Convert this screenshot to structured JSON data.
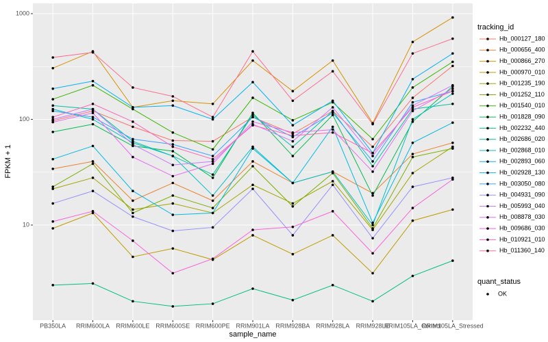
{
  "chart_data": {
    "type": "line",
    "x_label": "sample_name",
    "y_label": "FPKM + 1",
    "legend_title": "tracking_id",
    "shape_legend_title": "quant_status",
    "shape_legend_items": [
      "OK"
    ],
    "log_y": true,
    "grid": true,
    "categories": [
      "PB350LA",
      "RRIM600LA",
      "RRIM600LE",
      "RRIM600SE",
      "RRIM600PE",
      "RRIM901LA",
      "RRIM928BA",
      "RRIM928LA",
      "RRIM928LE",
      "RRIM105LA_Control",
      "RRIM105LA_Stressed"
    ],
    "ylim": [
      1.26,
      1250
    ],
    "yticks": [
      10,
      100,
      1000
    ],
    "series": [
      {
        "name": "Hb_000127_180",
        "color": "#F8766D",
        "values": [
          97,
          120,
          85,
          63,
          62,
          105,
          73,
          120,
          55,
          160,
          320
        ]
      },
      {
        "name": "Hb_000656_400",
        "color": "#EA8331",
        "values": [
          34,
          40,
          17,
          25,
          17,
          40,
          25,
          32,
          20,
          47,
          60
        ]
      },
      {
        "name": "Hb_000866_270",
        "color": "#D89000",
        "values": [
          305,
          440,
          130,
          150,
          140,
          360,
          185,
          360,
          92,
          540,
          920
        ]
      },
      {
        "name": "Hb_000970_010",
        "color": "#C09B00",
        "values": [
          9.3,
          13,
          5,
          6,
          4.7,
          8,
          5.3,
          8,
          3.5,
          11,
          14
        ]
      },
      {
        "name": "Hb_001235_190",
        "color": "#A3A500",
        "values": [
          22,
          28,
          14,
          16,
          13,
          24,
          16,
          26,
          9,
          31,
          55
        ]
      },
      {
        "name": "Hb_001252_110",
        "color": "#7CAE00",
        "values": [
          23,
          38,
          13,
          19,
          14.5,
          36,
          15,
          31,
          9.3,
          44,
          53
        ]
      },
      {
        "name": "Hb_001540_010",
        "color": "#39B600",
        "values": [
          155,
          210,
          125,
          75,
          52,
          160,
          98,
          145,
          65,
          200,
          350
        ]
      },
      {
        "name": "Hb_001828_090",
        "color": "#00BB4E",
        "values": [
          76,
          90,
          56,
          50,
          28,
          115,
          45,
          110,
          19,
          95,
          205
        ]
      },
      {
        "name": "Hb_002232_440",
        "color": "#00BF7D",
        "values": [
          2.7,
          2.8,
          1.9,
          1.7,
          1.8,
          2.5,
          1.95,
          2.7,
          1.9,
          3.3,
          4.6
        ]
      },
      {
        "name": "Hb_002686_020",
        "color": "#00C1A3",
        "values": [
          135,
          125,
          62,
          45,
          30,
          110,
          55,
          120,
          36,
          125,
          140
        ]
      },
      {
        "name": "Hb_002868_010",
        "color": "#00BFC4",
        "values": [
          125,
          100,
          60,
          45,
          19,
          55,
          25,
          32,
          10,
          100,
          175
        ]
      },
      {
        "name": "Hb_002893_060",
        "color": "#00BAE0",
        "values": [
          42,
          56,
          21,
          12.5,
          13,
          53,
          25,
          85,
          10.5,
          60,
          93
        ]
      },
      {
        "name": "Hb_002928_130",
        "color": "#00B0F6",
        "values": [
          195,
          230,
          130,
          135,
          100,
          225,
          88,
          150,
          48,
          240,
          420
        ]
      },
      {
        "name": "Hb_003050_080",
        "color": "#35A2FF",
        "values": [
          120,
          105,
          65,
          58,
          45,
          105,
          68,
          115,
          40,
          145,
          185
        ]
      },
      {
        "name": "Hb_004931_090",
        "color": "#9590FF",
        "values": [
          16,
          21,
          12,
          8.8,
          9.5,
          22,
          8,
          24,
          7.5,
          23,
          28
        ]
      },
      {
        "name": "Hb_005993_040",
        "color": "#C77CFF",
        "values": [
          100,
          125,
          58,
          37,
          40,
          90,
          62,
          130,
          45,
          135,
          210
        ]
      },
      {
        "name": "Hb_008878_030",
        "color": "#E76BF3",
        "values": [
          94,
          115,
          44,
          29,
          38,
          95,
          75,
          80,
          32,
          120,
          195
        ]
      },
      {
        "name": "Hb_009686_030",
        "color": "#FA62DB",
        "values": [
          10.8,
          13.5,
          7.1,
          3.5,
          4.8,
          9,
          9.6,
          13.5,
          5.4,
          14.5,
          27
        ]
      },
      {
        "name": "Hb_010921_010",
        "color": "#FF62BC",
        "values": [
          105,
          140,
          95,
          55,
          42,
          88,
          70,
          75,
          48,
          130,
          185
        ]
      },
      {
        "name": "Hb_011360_140",
        "color": "#FF6C91",
        "values": [
          385,
          430,
          200,
          165,
          105,
          440,
          150,
          285,
          90,
          420,
          580
        ]
      }
    ]
  }
}
